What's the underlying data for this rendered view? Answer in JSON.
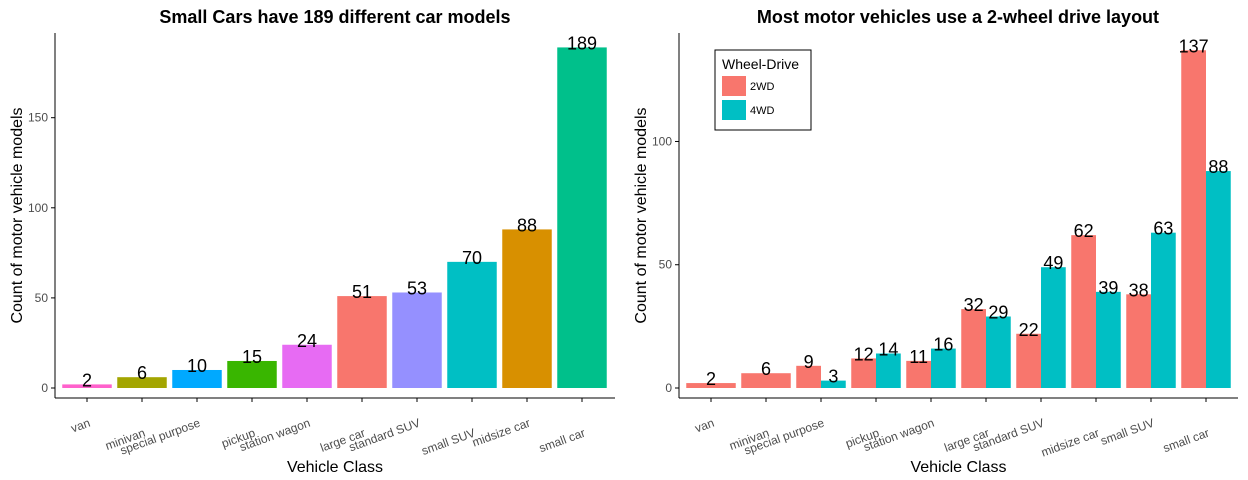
{
  "chart_data": [
    {
      "type": "bar",
      "title": "Small Cars have 189 different car models",
      "xlabel": "Vehicle Class",
      "ylabel": "Count of motor vehicle models",
      "categories": [
        "van",
        "minivan",
        "special purpose",
        "pickup",
        "station wagon",
        "large car",
        "standard SUV",
        "small SUV",
        "midsize car",
        "small car"
      ],
      "values": [
        2,
        6,
        10,
        15,
        24,
        51,
        53,
        70,
        88,
        189
      ],
      "colors": [
        "#FF61CC",
        "#A3A500",
        "#00A9FF",
        "#39B600",
        "#E76BF3",
        "#F8766D",
        "#9590FF",
        "#00BFC4",
        "#D89000",
        "#00C08B"
      ],
      "ylim": [
        0,
        197
      ],
      "yticks": [
        0,
        50,
        100,
        150
      ],
      "grid": false,
      "legend": "none"
    },
    {
      "type": "bar",
      "title": "Most motor vehicles use a 2-wheel drive layout",
      "xlabel": "Vehicle Class",
      "ylabel": "Count of motor vehicle models",
      "categories": [
        "van",
        "minivan",
        "special purpose",
        "pickup",
        "station wagon",
        "large car",
        "standard SUV",
        "midsize car",
        "small SUV",
        "small car"
      ],
      "series": [
        {
          "name": "2WD",
          "color": "#F8766D",
          "values": [
            2,
            6,
            9,
            12,
            11,
            32,
            22,
            62,
            38,
            137
          ]
        },
        {
          "name": "4WD",
          "color": "#00BFC4",
          "values": [
            null,
            null,
            3,
            14,
            16,
            29,
            49,
            39,
            63,
            88
          ]
        }
      ],
      "ylim": [
        0,
        144
      ],
      "yticks": [
        0,
        50,
        100
      ],
      "grid": false,
      "legend": {
        "title": "Wheel-Drive",
        "position": "top-left"
      }
    }
  ]
}
